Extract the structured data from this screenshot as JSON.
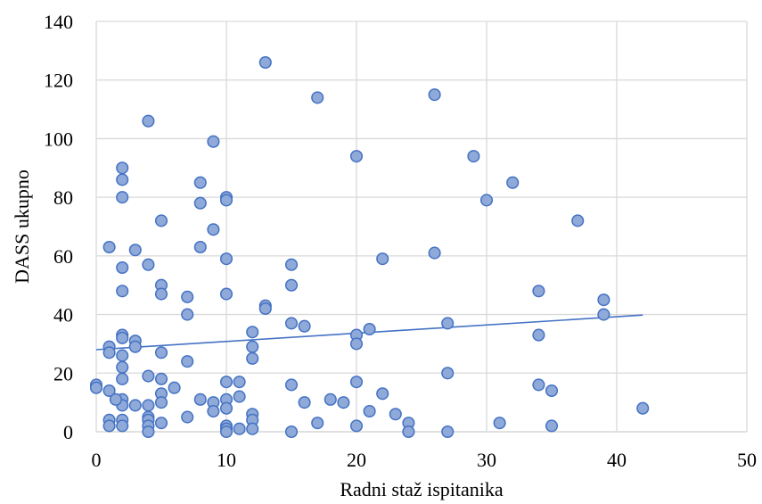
{
  "chart_data": {
    "type": "scatter",
    "title": "",
    "xlabel": "Radni staž ispitanika",
    "ylabel": "DASS ukupno",
    "xlim": [
      0,
      50
    ],
    "ylim": [
      0,
      140
    ],
    "x_ticks": [
      "0",
      "10",
      "20",
      "30",
      "40",
      "50"
    ],
    "y_ticks": [
      "0",
      "20",
      "40",
      "60",
      "80",
      "100",
      "120",
      "140"
    ],
    "grid": true,
    "legend": "none",
    "series": [
      {
        "marker_fill": "#8fa9d8",
        "marker_edge": "#4472c4",
        "points": [
          [
            0,
            16
          ],
          [
            0,
            15
          ],
          [
            1,
            63
          ],
          [
            1,
            29
          ],
          [
            1,
            27
          ],
          [
            1,
            14
          ],
          [
            1,
            4
          ],
          [
            1,
            2
          ],
          [
            2,
            90
          ],
          [
            2,
            86
          ],
          [
            2,
            80
          ],
          [
            2,
            56
          ],
          [
            2,
            48
          ],
          [
            2,
            33
          ],
          [
            2,
            32
          ],
          [
            2,
            26
          ],
          [
            2,
            22
          ],
          [
            2,
            18
          ],
          [
            2,
            11
          ],
          [
            2,
            9
          ],
          [
            2,
            4
          ],
          [
            2,
            2
          ],
          [
            1.5,
            11
          ],
          [
            3,
            62
          ],
          [
            3,
            31
          ],
          [
            3,
            29
          ],
          [
            3,
            9
          ],
          [
            4,
            106
          ],
          [
            4,
            57
          ],
          [
            4,
            19
          ],
          [
            4,
            9
          ],
          [
            4,
            5
          ],
          [
            4,
            4
          ],
          [
            4,
            2
          ],
          [
            4,
            0
          ],
          [
            5,
            72
          ],
          [
            5,
            50
          ],
          [
            5,
            47
          ],
          [
            5,
            27
          ],
          [
            5,
            18
          ],
          [
            5,
            13
          ],
          [
            5,
            10
          ],
          [
            5,
            3
          ],
          [
            6,
            15
          ],
          [
            7,
            46
          ],
          [
            7,
            40
          ],
          [
            7,
            24
          ],
          [
            7,
            5
          ],
          [
            8,
            85
          ],
          [
            8,
            78
          ],
          [
            8,
            63
          ],
          [
            8,
            11
          ],
          [
            9,
            99
          ],
          [
            9,
            69
          ],
          [
            9,
            10
          ],
          [
            9,
            7
          ],
          [
            10,
            80
          ],
          [
            10,
            79
          ],
          [
            10,
            59
          ],
          [
            10,
            47
          ],
          [
            10,
            17
          ],
          [
            10,
            11
          ],
          [
            10,
            8
          ],
          [
            10,
            2
          ],
          [
            10,
            1
          ],
          [
            10,
            0
          ],
          [
            11,
            17
          ],
          [
            11,
            12
          ],
          [
            11,
            1
          ],
          [
            12,
            34
          ],
          [
            12,
            29
          ],
          [
            12,
            25
          ],
          [
            12,
            6
          ],
          [
            12,
            4
          ],
          [
            12,
            1
          ],
          [
            13,
            126
          ],
          [
            13,
            43
          ],
          [
            13,
            42
          ],
          [
            15,
            57
          ],
          [
            15,
            50
          ],
          [
            15,
            37
          ],
          [
            15,
            16
          ],
          [
            15,
            0
          ],
          [
            16,
            36
          ],
          [
            16,
            10
          ],
          [
            17,
            114
          ],
          [
            17,
            3
          ],
          [
            18,
            11
          ],
          [
            19,
            10
          ],
          [
            20,
            94
          ],
          [
            20,
            33
          ],
          [
            20,
            30
          ],
          [
            20,
            17
          ],
          [
            20,
            2
          ],
          [
            21,
            35
          ],
          [
            21,
            7
          ],
          [
            22,
            59
          ],
          [
            22,
            13
          ],
          [
            23,
            6
          ],
          [
            24,
            3
          ],
          [
            24,
            0
          ],
          [
            26,
            115
          ],
          [
            26,
            61
          ],
          [
            27,
            37
          ],
          [
            27,
            20
          ],
          [
            27,
            0
          ],
          [
            29,
            94
          ],
          [
            30,
            79
          ],
          [
            31,
            3
          ],
          [
            32,
            85
          ],
          [
            34,
            48
          ],
          [
            34,
            33
          ],
          [
            34,
            16
          ],
          [
            35,
            14
          ],
          [
            35,
            2
          ],
          [
            37,
            72
          ],
          [
            39,
            45
          ],
          [
            39,
            40
          ],
          [
            42,
            8
          ]
        ]
      }
    ],
    "trendline": {
      "type": "linear",
      "x": [
        0,
        42
      ],
      "y": [
        28,
        39.8
      ],
      "color": "#4472c4"
    }
  }
}
